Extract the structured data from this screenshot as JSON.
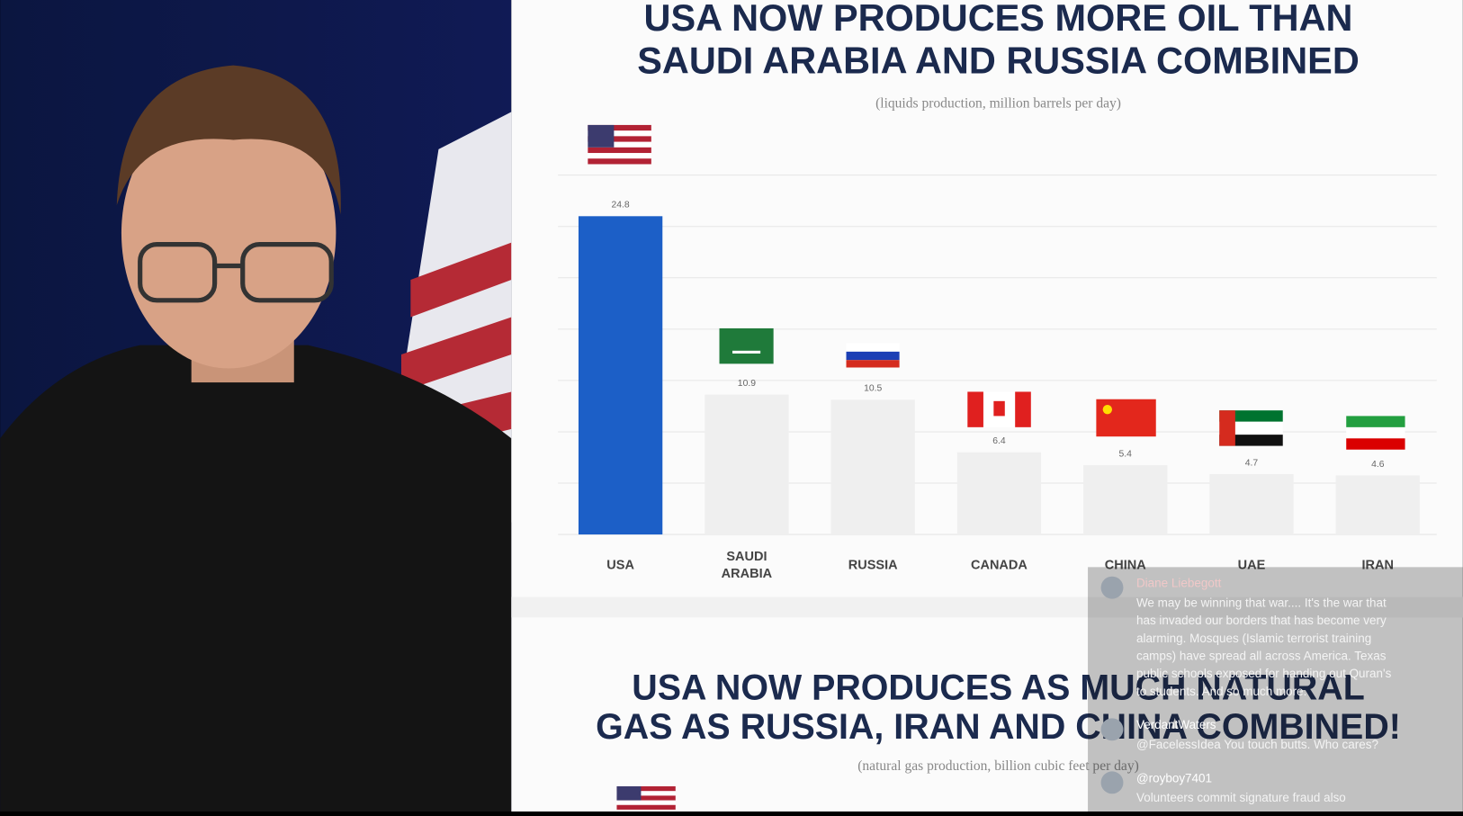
{
  "chart_data": {
    "type": "bar",
    "title": [
      "USA NOW PRODUCES MORE OIL THAN",
      "SAUDI ARABIA AND RUSSIA COMBINED"
    ],
    "subtitle": "(liquids production, million barrels per day)",
    "categories": [
      "USA",
      "SAUDI ARABIA",
      "RUSSIA",
      "CANADA",
      "CHINA",
      "UAE",
      "IRAN"
    ],
    "values": [
      24.8,
      10.9,
      10.5,
      6.4,
      5.4,
      4.7,
      4.6
    ],
    "colors": [
      "#1c5fc7",
      "#efefef",
      "#efefef",
      "#efefef",
      "#efefef",
      "#efefef",
      "#efefef"
    ],
    "ylim": [
      0,
      29
    ],
    "yticks": [
      0,
      4,
      8,
      12,
      16,
      20,
      24,
      28
    ],
    "grid": true
  },
  "next_slide": {
    "title": [
      "USA NOW PRODUCES AS MUCH NATURAL",
      "GAS AS RUSSIA, IRAN AND CHINA COMBINED!"
    ],
    "subtitle": "(natural gas production, billion cubic feet per day)"
  },
  "comments": [
    {
      "user": "Diane Liebegott",
      "lines": [
        "We may be winning that war.... It's the war that",
        "has invaded our borders that has become very",
        "alarming. Mosques (Islamic terrorist training",
        "camps) have spread all across America. Texas",
        "public schools exposed for handing out Quran's",
        "to students. And so much more."
      ]
    },
    {
      "user": "VerdantWaters",
      "lines": [
        "@FacelessIdea You touch butts. Who cares?"
      ]
    },
    {
      "user": "@royboy7401",
      "lines": [
        "Volunteers commit signature fraud also"
      ]
    }
  ]
}
